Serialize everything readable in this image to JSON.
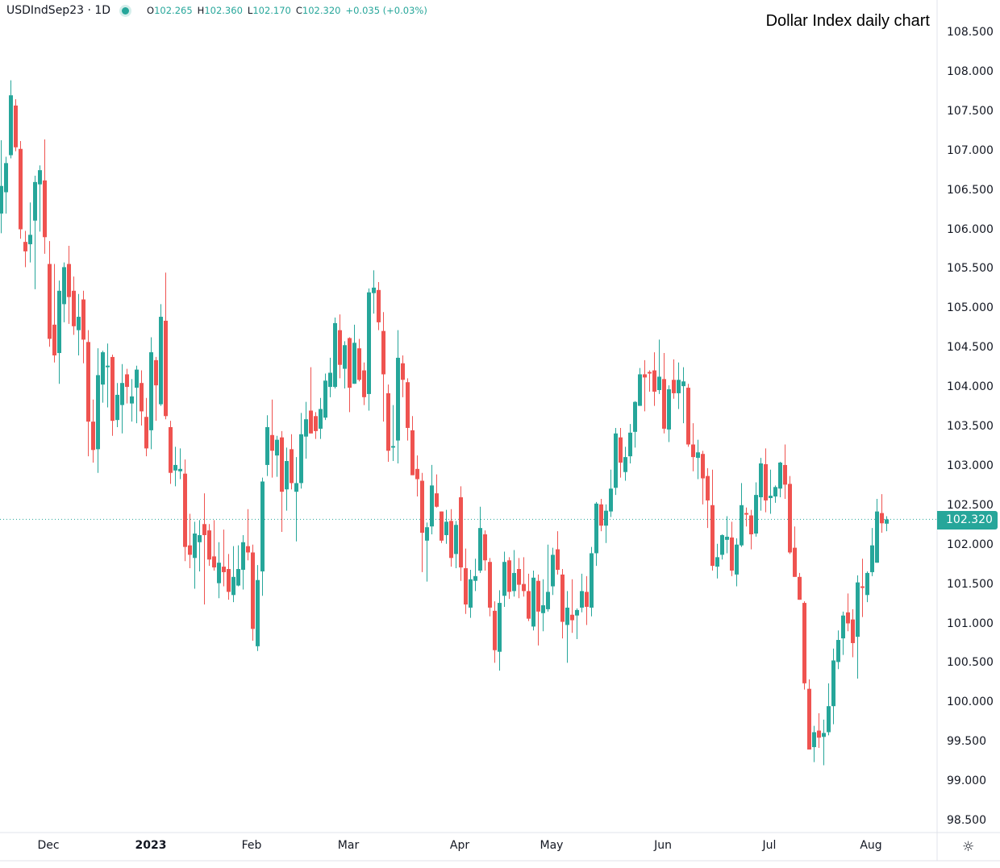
{
  "legend": {
    "symbol": "USDIndSep23 · 1D",
    "open_label": "O",
    "open": "102.265",
    "high_label": "H",
    "high": "102.360",
    "low_label": "L",
    "low": "102.170",
    "close_label": "C",
    "close": "102.320",
    "change": "+0.035 (+0.03%)"
  },
  "title": "Dollar Index daily chart",
  "price_tag": "102.320",
  "settings_icon": "gear-icon",
  "colors": {
    "up": "#26a69a",
    "down": "#ef5350",
    "axis_text": "#131722",
    "grid_line": "#e0e3eb"
  },
  "chart_data": {
    "type": "candlestick",
    "title": "Dollar Index daily chart",
    "interval": "1D",
    "ylim": [
      98.3,
      108.8
    ],
    "y_ticks": [
      "108.500",
      "108.000",
      "107.500",
      "107.000",
      "106.500",
      "106.000",
      "105.500",
      "105.000",
      "104.500",
      "104.000",
      "103.500",
      "103.000",
      "102.500",
      "102.000",
      "101.500",
      "101.000",
      "100.500",
      "100.000",
      "99.500",
      "99.000",
      "98.500"
    ],
    "x_ticks": [
      "Dec",
      "2023",
      "Feb",
      "Mar",
      "Apr",
      "May",
      "Jun",
      "Jul",
      "Aug"
    ],
    "last_price": 102.32,
    "grid": false,
    "ohlc_fields": [
      "open",
      "high",
      "low",
      "close"
    ],
    "candles": [
      [
        106.2,
        107.13,
        105.95,
        106.55
      ],
      [
        106.47,
        106.92,
        106.2,
        106.84
      ],
      [
        106.94,
        107.89,
        106.9,
        107.7
      ],
      [
        107.57,
        107.65,
        106.99,
        107.04
      ],
      [
        107.02,
        107.12,
        105.88,
        106.0
      ],
      [
        105.84,
        105.98,
        105.52,
        105.72
      ],
      [
        105.81,
        106.34,
        105.58,
        105.93
      ],
      [
        106.11,
        106.68,
        105.24,
        106.6
      ],
      [
        106.57,
        106.81,
        105.97,
        106.75
      ],
      [
        106.62,
        107.14,
        105.69,
        105.9
      ],
      [
        105.56,
        105.85,
        104.51,
        104.61
      ],
      [
        104.79,
        105.56,
        104.31,
        104.4
      ],
      [
        104.43,
        105.35,
        104.04,
        105.22
      ],
      [
        105.05,
        105.58,
        104.82,
        105.52
      ],
      [
        105.56,
        105.79,
        104.8,
        105.14
      ],
      [
        105.22,
        105.4,
        104.66,
        104.77
      ],
      [
        104.72,
        105.18,
        104.4,
        104.89
      ],
      [
        105.11,
        105.22,
        104.3,
        104.6
      ],
      [
        104.57,
        104.72,
        103.12,
        103.56
      ],
      [
        103.56,
        103.84,
        103.04,
        103.2
      ],
      [
        103.21,
        104.49,
        102.91,
        104.15
      ],
      [
        104.03,
        104.46,
        103.8,
        104.44
      ],
      [
        104.25,
        104.55,
        103.74,
        104.27
      ],
      [
        104.38,
        104.41,
        103.38,
        103.57
      ],
      [
        103.58,
        104.05,
        103.49,
        103.9
      ],
      [
        103.77,
        104.29,
        103.41,
        104.05
      ],
      [
        104.16,
        104.23,
        103.79,
        104.0
      ],
      [
        103.79,
        104.1,
        103.56,
        103.88
      ],
      [
        103.99,
        104.27,
        103.54,
        104.22
      ],
      [
        104.05,
        104.21,
        103.51,
        103.69
      ],
      [
        103.62,
        103.86,
        103.12,
        103.22
      ],
      [
        103.45,
        104.63,
        103.21,
        104.44
      ],
      [
        104.34,
        104.38,
        103.57,
        104.02
      ],
      [
        103.78,
        105.05,
        103.76,
        104.89
      ],
      [
        104.84,
        105.45,
        103.59,
        103.63
      ],
      [
        103.49,
        103.57,
        102.77,
        102.91
      ],
      [
        102.94,
        103.24,
        102.74,
        103.01
      ],
      [
        102.93,
        103.22,
        102.83,
        102.96
      ],
      [
        102.9,
        103.08,
        101.79,
        101.97
      ],
      [
        101.99,
        102.39,
        101.7,
        101.87
      ],
      [
        101.83,
        102.29,
        101.44,
        102.14
      ],
      [
        102.03,
        102.31,
        101.66,
        102.12
      ],
      [
        102.26,
        102.65,
        101.24,
        102.12
      ],
      [
        102.18,
        102.26,
        101.73,
        101.81
      ],
      [
        101.85,
        102.31,
        101.67,
        101.71
      ],
      [
        101.51,
        102.03,
        101.32,
        101.77
      ],
      [
        101.72,
        102.19,
        101.47,
        101.65
      ],
      [
        101.69,
        101.88,
        101.3,
        101.4
      ],
      [
        101.36,
        101.98,
        101.27,
        101.59
      ],
      [
        101.48,
        101.99,
        101.47,
        101.69
      ],
      [
        101.68,
        102.12,
        101.43,
        102.03
      ],
      [
        101.98,
        102.45,
        101.8,
        101.9
      ],
      [
        101.9,
        102.0,
        100.78,
        100.93
      ],
      [
        100.71,
        101.74,
        100.65,
        101.55
      ],
      [
        101.66,
        102.85,
        101.35,
        102.8
      ],
      [
        103.01,
        103.64,
        102.87,
        103.49
      ],
      [
        103.39,
        103.84,
        102.85,
        103.19
      ],
      [
        103.13,
        103.38,
        102.86,
        103.33
      ],
      [
        103.36,
        103.44,
        102.16,
        102.67
      ],
      [
        102.7,
        103.23,
        102.43,
        103.06
      ],
      [
        103.21,
        103.4,
        102.7,
        102.78
      ],
      [
        102.67,
        103.11,
        102.04,
        102.78
      ],
      [
        102.78,
        103.67,
        102.71,
        103.4
      ],
      [
        103.37,
        103.81,
        103.09,
        103.59
      ],
      [
        103.7,
        104.25,
        103.41,
        103.41
      ],
      [
        103.63,
        103.68,
        103.34,
        103.44
      ],
      [
        103.47,
        103.86,
        103.34,
        103.72
      ],
      [
        103.61,
        104.17,
        103.58,
        104.08
      ],
      [
        104.0,
        104.37,
        103.87,
        104.18
      ],
      [
        104.0,
        104.88,
        103.98,
        104.81
      ],
      [
        104.72,
        104.92,
        104.11,
        104.28
      ],
      [
        104.23,
        104.58,
        103.98,
        104.53
      ],
      [
        104.62,
        104.63,
        103.68,
        103.99
      ],
      [
        104.04,
        104.79,
        104.04,
        104.56
      ],
      [
        104.49,
        104.61,
        104.07,
        104.09
      ],
      [
        104.21,
        104.31,
        103.77,
        103.87
      ],
      [
        103.91,
        105.25,
        103.7,
        105.2
      ],
      [
        105.19,
        105.48,
        104.93,
        105.26
      ],
      [
        105.23,
        105.33,
        104.72,
        104.82
      ],
      [
        104.71,
        104.95,
        103.56,
        104.16
      ],
      [
        103.92,
        104.03,
        103.05,
        103.19
      ],
      [
        103.23,
        103.77,
        103.06,
        103.25
      ],
      [
        103.32,
        104.72,
        103.03,
        104.37
      ],
      [
        104.3,
        104.4,
        103.87,
        104.09
      ],
      [
        104.06,
        104.11,
        103.32,
        103.48
      ],
      [
        103.45,
        103.63,
        102.88,
        102.88
      ],
      [
        102.96,
        103.13,
        102.61,
        102.83
      ],
      [
        102.81,
        102.91,
        101.65,
        102.15
      ],
      [
        102.05,
        102.28,
        101.53,
        102.22
      ],
      [
        102.23,
        103.01,
        102.13,
        102.75
      ],
      [
        102.65,
        102.89,
        102.47,
        102.48
      ],
      [
        102.42,
        102.42,
        102.02,
        102.05
      ],
      [
        102.12,
        102.44,
        102.01,
        102.29
      ],
      [
        102.3,
        102.45,
        101.72,
        101.83
      ],
      [
        101.88,
        102.3,
        101.7,
        102.25
      ],
      [
        102.6,
        102.74,
        101.54,
        101.71
      ],
      [
        101.7,
        101.95,
        101.12,
        101.24
      ],
      [
        101.2,
        101.68,
        101.07,
        101.56
      ],
      [
        101.54,
        101.82,
        101.41,
        101.6
      ],
      [
        101.67,
        102.48,
        101.64,
        102.21
      ],
      [
        102.13,
        102.18,
        101.67,
        101.8
      ],
      [
        101.78,
        101.83,
        101.09,
        101.2
      ],
      [
        101.16,
        101.28,
        100.5,
        100.66
      ],
      [
        100.64,
        101.42,
        100.4,
        101.26
      ],
      [
        101.35,
        101.91,
        101.21,
        101.78
      ],
      [
        101.8,
        101.84,
        101.31,
        101.4
      ],
      [
        101.41,
        101.93,
        101.34,
        101.64
      ],
      [
        101.69,
        101.83,
        101.32,
        101.49
      ],
      [
        101.5,
        101.84,
        101.34,
        101.41
      ],
      [
        101.41,
        101.63,
        101.03,
        101.06
      ],
      [
        100.96,
        101.67,
        100.91,
        101.58
      ],
      [
        101.54,
        101.62,
        100.72,
        101.15
      ],
      [
        101.13,
        101.56,
        100.9,
        101.23
      ],
      [
        101.18,
        102.0,
        101.15,
        101.4
      ],
      [
        101.47,
        101.96,
        101.36,
        101.87
      ],
      [
        101.94,
        102.17,
        101.62,
        101.68
      ],
      [
        101.62,
        101.69,
        100.81,
        101.02
      ],
      [
        100.98,
        101.41,
        100.5,
        101.2
      ],
      [
        101.11,
        101.56,
        100.88,
        101.04
      ],
      [
        101.1,
        101.19,
        100.8,
        101.17
      ],
      [
        101.2,
        101.63,
        101.14,
        101.41
      ],
      [
        101.4,
        101.6,
        100.98,
        101.21
      ],
      [
        101.2,
        101.97,
        101.09,
        101.89
      ],
      [
        101.89,
        102.54,
        101.73,
        102.52
      ],
      [
        102.51,
        102.58,
        102.17,
        102.24
      ],
      [
        102.24,
        102.51,
        102.02,
        102.43
      ],
      [
        102.42,
        102.95,
        102.35,
        102.71
      ],
      [
        102.72,
        103.48,
        102.63,
        103.41
      ],
      [
        103.36,
        103.48,
        102.85,
        103.04
      ],
      [
        102.92,
        103.24,
        102.81,
        103.11
      ],
      [
        103.12,
        103.53,
        103.03,
        103.42
      ],
      [
        103.43,
        103.82,
        103.23,
        103.81
      ],
      [
        103.76,
        104.24,
        103.76,
        104.16
      ],
      [
        104.16,
        104.34,
        103.69,
        104.12
      ],
      [
        104.19,
        104.21,
        103.94,
        104.17
      ],
      [
        104.21,
        104.44,
        103.76,
        103.94
      ],
      [
        103.96,
        104.6,
        103.91,
        104.13
      ],
      [
        104.1,
        104.43,
        103.41,
        103.47
      ],
      [
        103.46,
        104.02,
        103.3,
        103.97
      ],
      [
        104.09,
        104.35,
        103.85,
        103.92
      ],
      [
        103.92,
        104.31,
        103.72,
        104.09
      ],
      [
        104.01,
        104.25,
        103.54,
        104.07
      ],
      [
        103.99,
        104.04,
        103.24,
        103.27
      ],
      [
        103.27,
        103.54,
        102.93,
        103.11
      ],
      [
        103.1,
        103.33,
        102.83,
        103.17
      ],
      [
        103.15,
        103.19,
        102.51,
        102.84
      ],
      [
        102.87,
        102.97,
        102.21,
        102.56
      ],
      [
        102.5,
        102.95,
        101.67,
        101.73
      ],
      [
        101.72,
        102.01,
        101.57,
        101.84
      ],
      [
        101.87,
        102.13,
        101.81,
        102.12
      ],
      [
        102.06,
        102.36,
        101.89,
        102.1
      ],
      [
        102.09,
        102.29,
        101.6,
        101.67
      ],
      [
        101.62,
        102.08,
        101.47,
        102.0
      ],
      [
        101.99,
        102.78,
        101.97,
        102.5
      ],
      [
        102.4,
        102.47,
        102.23,
        102.38
      ],
      [
        102.37,
        102.44,
        101.94,
        102.13
      ],
      [
        102.14,
        102.79,
        102.1,
        102.63
      ],
      [
        102.6,
        103.1,
        102.43,
        103.03
      ],
      [
        103.02,
        103.22,
        102.41,
        102.56
      ],
      [
        102.59,
        102.95,
        102.39,
        102.62
      ],
      [
        102.61,
        102.75,
        102.53,
        102.73
      ],
      [
        102.71,
        103.05,
        102.6,
        103.04
      ],
      [
        103.01,
        103.27,
        102.58,
        102.76
      ],
      [
        102.77,
        102.87,
        101.88,
        101.9
      ],
      [
        101.96,
        102.23,
        101.59,
        101.59
      ],
      [
        101.59,
        101.64,
        101.3,
        101.3
      ],
      [
        101.26,
        101.28,
        100.16,
        100.24
      ],
      [
        100.17,
        100.29,
        99.4,
        99.4
      ],
      [
        99.43,
        99.7,
        99.24,
        99.62
      ],
      [
        99.64,
        99.86,
        99.42,
        99.55
      ],
      [
        99.56,
        99.78,
        99.2,
        99.61
      ],
      [
        99.62,
        100.24,
        99.58,
        99.95
      ],
      [
        99.95,
        100.68,
        99.72,
        100.53
      ],
      [
        100.51,
        100.91,
        100.42,
        100.79
      ],
      [
        100.81,
        101.15,
        100.6,
        101.1
      ],
      [
        101.14,
        101.38,
        100.9,
        101.0
      ],
      [
        101.05,
        101.18,
        100.57,
        100.75
      ],
      [
        100.83,
        101.61,
        100.3,
        101.52
      ],
      [
        101.47,
        101.82,
        101.08,
        101.45
      ],
      [
        101.36,
        101.66,
        101.27,
        101.64
      ],
      [
        101.65,
        102.21,
        101.6,
        101.99
      ],
      [
        101.77,
        102.58,
        101.77,
        102.42
      ],
      [
        102.4,
        102.64,
        102.15,
        102.27
      ],
      [
        102.265,
        102.36,
        102.17,
        102.32
      ]
    ]
  }
}
